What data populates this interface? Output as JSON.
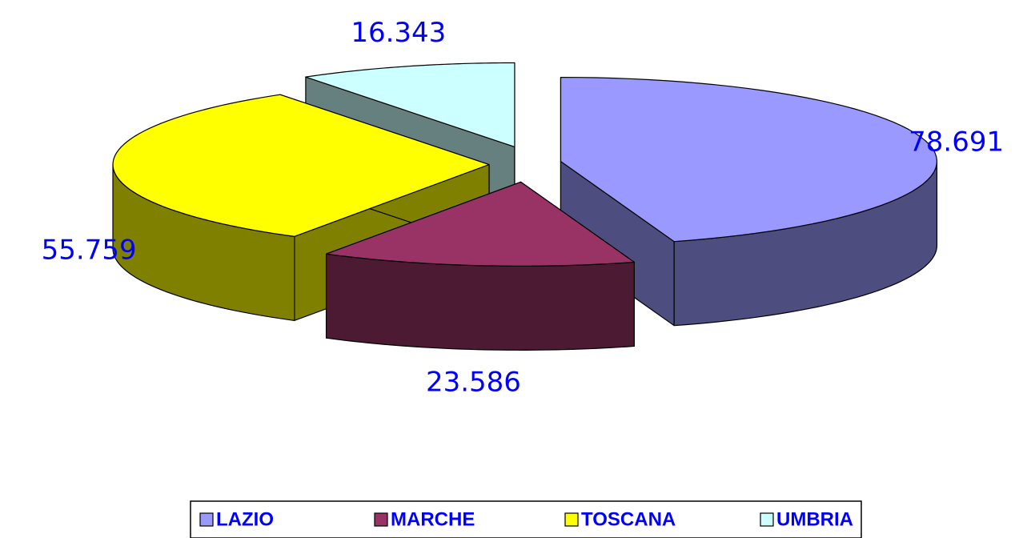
{
  "chart_data": {
    "type": "pie3d",
    "categories": [
      "LAZIO",
      "MARCHE",
      "TOSCANA",
      "UMBRIA"
    ],
    "values": [
      78.691,
      23.586,
      55.759,
      16.343
    ],
    "colors": [
      "#9999ff",
      "#993366",
      "#ffff00",
      "#ccffff"
    ],
    "legend": "bottom"
  }
}
